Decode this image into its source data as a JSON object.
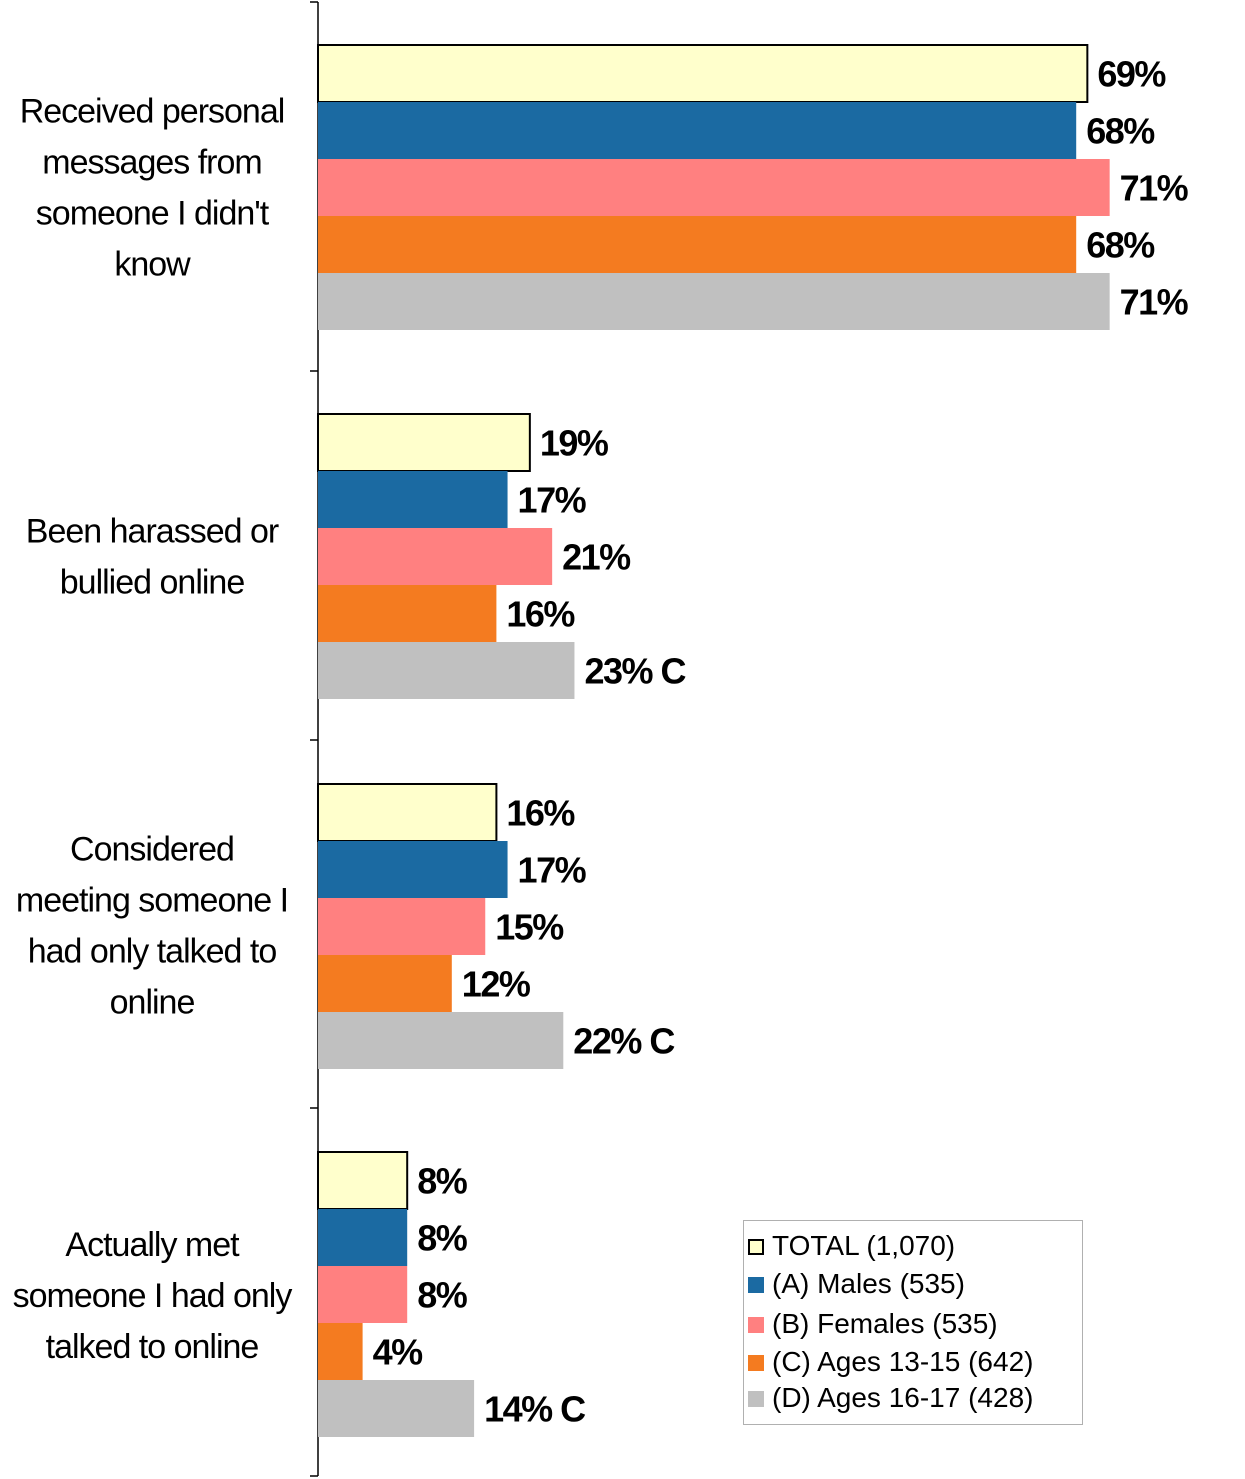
{
  "chart_data": {
    "type": "bar",
    "orientation": "horizontal",
    "categories": [
      "Received personal messages from someone I didn't know",
      "Been harassed or bullied online",
      "Considered meeting someone I had only talked to online",
      "Actually met someone I had only talked to online"
    ],
    "category_lines": [
      [
        "Received personal",
        "messages from",
        "someone I didn't",
        "know"
      ],
      [
        "Been harassed or",
        "bullied online"
      ],
      [
        "Considered",
        "meeting someone I",
        "had only talked to",
        "online"
      ],
      [
        "Actually met",
        "someone I had only",
        "talked to online"
      ]
    ],
    "series": [
      {
        "name": "TOTAL (1,070)",
        "color": "#ffffcc",
        "values": [
          69,
          19,
          16,
          8
        ],
        "labels": [
          "69%",
          "19%",
          "16%",
          "8%"
        ]
      },
      {
        "name": "(A) Males (535)",
        "color": "#1b6aa2",
        "values": [
          68,
          17,
          17,
          8
        ],
        "labels": [
          "68%",
          "17%",
          "17%",
          "8%"
        ]
      },
      {
        "name": "(B) Females (535)",
        "color": "#ff8080",
        "values": [
          71,
          21,
          15,
          8
        ],
        "labels": [
          "71%",
          "21%",
          "15%",
          "8%"
        ]
      },
      {
        "name": "(C) Ages 13-15 (642)",
        "color": "#f47b20",
        "values": [
          68,
          16,
          12,
          4
        ],
        "labels": [
          "68%",
          "16%",
          "12%",
          "4%"
        ]
      },
      {
        "name": "(D) Ages 16-17 (428)",
        "color": "#c0c0c0",
        "values": [
          71,
          23,
          22,
          14
        ],
        "labels": [
          "71%",
          "23% C",
          "22% C",
          "14% C"
        ]
      }
    ],
    "xlim": [
      0,
      100
    ],
    "grid": false,
    "legend_position": "bottom-right",
    "outlined_series": "TOTAL (1,070)"
  }
}
